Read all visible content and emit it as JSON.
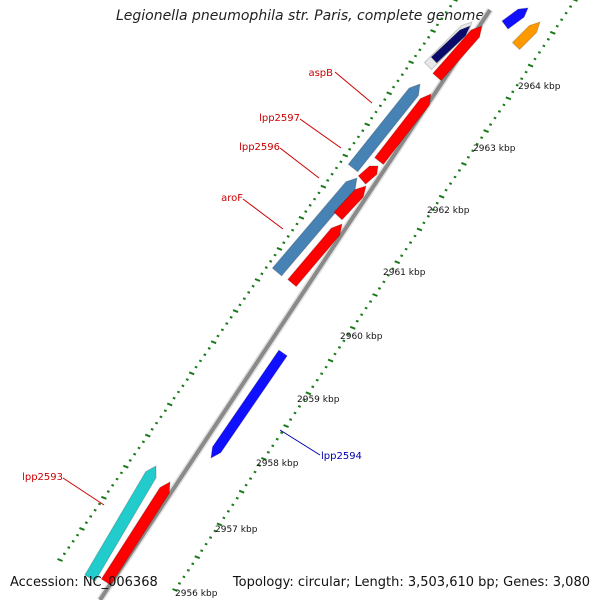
{
  "title": "Legionella pneumophila str. Paris, complete genome",
  "footer": {
    "accession": "Accession: NC_006368",
    "summary": "Topology: circular; Length: 3,503,610 bp; Genes: 3,080"
  },
  "colors": {
    "backbone": "#7a7a7a",
    "tick": "#1a7a1a",
    "forward_cds": "#1010ff",
    "forward_cds_highlight": "#4682b4",
    "reverse_cds": "#ff0000",
    "label_red": "#cc0000",
    "label_blue": "#0000aa",
    "cyan_feature": "#22cccc",
    "orange_feature": "#ff9900",
    "navy_feature": "#0a0a6a"
  },
  "scale": {
    "labels": [
      "2956 kbp",
      "2957 kbp",
      "2958 kbp",
      "2959 kbp",
      "2960 kbp",
      "2961 kbp",
      "2962 kbp",
      "2963 kbp",
      "2964 kbp"
    ]
  },
  "genes": [
    {
      "name": "aspB",
      "strand": "forward",
      "label_color": "red"
    },
    {
      "name": "lpp2597",
      "strand": "forward",
      "label_color": "red"
    },
    {
      "name": "lpp2596",
      "strand": "forward",
      "label_color": "red"
    },
    {
      "name": "aroF",
      "strand": "forward",
      "label_color": "red"
    },
    {
      "name": "lpp2594",
      "strand": "reverse",
      "label_color": "blue"
    },
    {
      "name": "lpp2593",
      "strand": "forward",
      "label_color": "red"
    }
  ]
}
